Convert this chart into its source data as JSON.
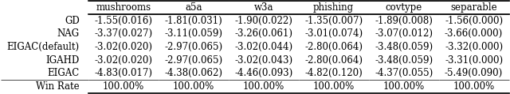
{
  "columns": [
    "",
    "mushrooms",
    "a5a",
    "w3a",
    "phishing",
    "covtype",
    "separable"
  ],
  "rows": [
    [
      "GD",
      "-1.55(0.016)",
      "-1.81(0.031)",
      "-1.90(0.022)",
      "-1.35(0.007)",
      "-1.89(0.008)",
      "-1.56(0.000)"
    ],
    [
      "NAG",
      "-3.37(0.027)",
      "-3.11(0.059)",
      "-3.26(0.061)",
      "-3.01(0.074)",
      "-3.07(0.012)",
      "-3.66(0.000)"
    ],
    [
      "EIGAC(default)",
      "-3.02(0.020)",
      "-2.97(0.065)",
      "-3.02(0.044)",
      "-2.80(0.064)",
      "-3.48(0.059)",
      "-3.32(0.000)"
    ],
    [
      "IGAHD",
      "-3.02(0.020)",
      "-2.97(0.065)",
      "-3.02(0.043)",
      "-2.80(0.064)",
      "-3.48(0.059)",
      "-3.31(0.000)"
    ],
    [
      "EIGAC",
      "-4.83(0.017)",
      "-4.38(0.062)",
      "-4.46(0.093)",
      "-4.82(0.120)",
      "-4.37(0.055)",
      "-5.49(0.090)"
    ],
    [
      "Win Rate",
      "100.00%",
      "100.00%",
      "100.00%",
      "100.00%",
      "100.00%",
      "100.00%"
    ]
  ],
  "header_color": "#ffffff",
  "row_colors": [
    "#ffffff",
    "#ffffff"
  ],
  "edge_color": "#000000",
  "font_size": 8.5,
  "fig_width": 6.4,
  "fig_height": 1.19,
  "dpi": 100
}
